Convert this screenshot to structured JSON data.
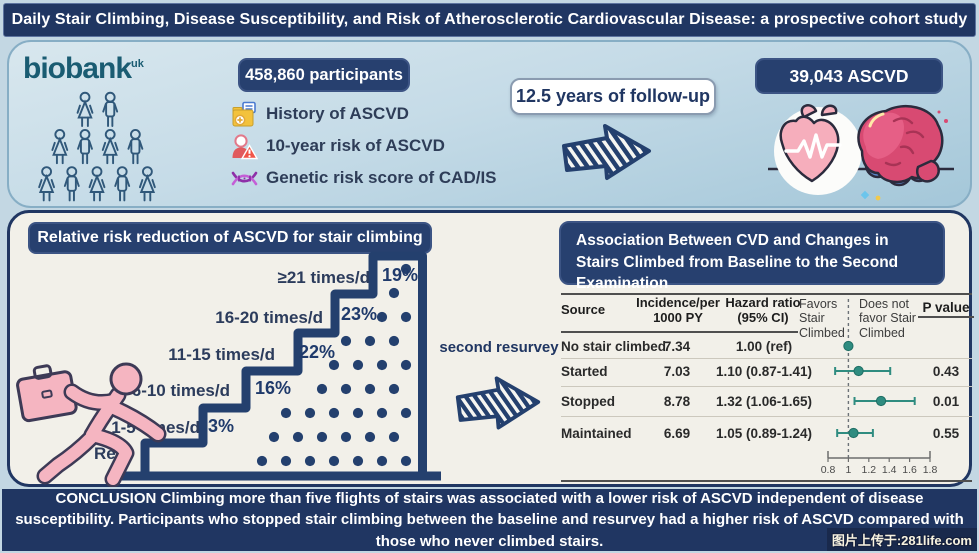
{
  "page": {
    "title": "Daily Stair Climbing, Disease Susceptibility, and Risk of Atherosclerotic Cardiovascular Disease: a prospective cohort study"
  },
  "colors": {
    "navy": "#203662",
    "badge_navy": "#27406f",
    "panel_cream": "#f2f0e9",
    "panel_blue_top": "#d8e7ee",
    "panel_blue_bottom": "#a4c7d9",
    "biobank_teal": "#1a5c72",
    "forest_teal": "#2f8c80",
    "person_pink": "#f5b5c1"
  },
  "top_panel": {
    "biobank_logo": "biobank",
    "biobank_sup": "uk",
    "participants_badge": "458,860 participants",
    "risk_items": [
      {
        "icon": "medical-record-icon",
        "label": "History of ASCVD"
      },
      {
        "icon": "patient-risk-icon",
        "label": "10-year risk of ASCVD"
      },
      {
        "icon": "dna-icon",
        "label": "Genetic risk score of CAD/IS"
      }
    ],
    "followup_badge": "12.5 years of follow-up",
    "ascvd_badge": "39,043 ASCVD"
  },
  "left_chart": {
    "title": "Relative risk reduction of ASCVD for stair climbing",
    "baseline_label": "Ref",
    "steps": [
      {
        "label": "1-5 times/d",
        "value": "3%"
      },
      {
        "label": "6-10 times/d",
        "value": "16%"
      },
      {
        "label": "11-15 times/d",
        "value": "22%"
      },
      {
        "label": "16-20 times/d",
        "value": "23%"
      },
      {
        "label": "≥21 times/d",
        "value": "19%"
      }
    ]
  },
  "middle": {
    "resurvey_label": "second resurvey"
  },
  "right_table": {
    "title": "Association Between CVD and Changes in Stairs Climbed from Baseline to the Second Examination",
    "header_source": "Source",
    "header_incidence": "Incidence/per 1000 PY",
    "header_hazard": "Hazard ratio (95% CI)",
    "header_favors": "Favors Stair Climbed",
    "header_not_favor": "Does not favor Stair Climbed",
    "header_p": "P value",
    "axis_ticks": [
      "0.8",
      "1",
      "1.2",
      "1.4",
      "1.6",
      "1.8"
    ],
    "rows": [
      {
        "source": "No stair climbed",
        "incidence": "7.34",
        "hazard": "1.00 (ref)",
        "hr": 1.0,
        "lo": null,
        "hi": null,
        "p": ""
      },
      {
        "source": "Started",
        "incidence": "7.03",
        "hazard": "1.10 (0.87-1.41)",
        "hr": 1.1,
        "lo": 0.87,
        "hi": 1.41,
        "p": "0.43"
      },
      {
        "source": "Stopped",
        "incidence": "8.78",
        "hazard": "1.32 (1.06-1.65)",
        "hr": 1.32,
        "lo": 1.06,
        "hi": 1.65,
        "p": "0.01"
      },
      {
        "source": "Maintained",
        "incidence": "6.69",
        "hazard": "1.05 (0.89-1.24)",
        "hr": 1.05,
        "lo": 0.89,
        "hi": 1.24,
        "p": "0.55"
      }
    ]
  },
  "chart_data": [
    {
      "type": "bar",
      "subtype": "staircase-pictogram",
      "title": "Relative risk reduction of ASCVD for stair climbing",
      "categories": [
        "Ref",
        "1-5 times/d",
        "6-10 times/d",
        "11-15 times/d",
        "16-20 times/d",
        "≥21 times/d"
      ],
      "values": [
        0,
        3,
        16,
        22,
        23,
        19
      ],
      "ylabel": "Relative risk reduction (%)"
    },
    {
      "type": "scatter",
      "subtype": "forest-plot",
      "title": "Association Between CVD and Changes in Stairs Climbed from Baseline to the Second Examination",
      "categories": [
        "No stair climbed",
        "Started",
        "Stopped",
        "Maintained"
      ],
      "incidence_per_1000_py": [
        7.34,
        7.03,
        8.78,
        6.69
      ],
      "hazard_ratio": [
        1.0,
        1.1,
        1.32,
        1.05
      ],
      "ci_low": [
        null,
        0.87,
        1.06,
        0.89
      ],
      "ci_high": [
        null,
        1.41,
        1.65,
        1.24
      ],
      "p_values": [
        null,
        0.43,
        0.01,
        0.55
      ],
      "xlim": [
        0.8,
        1.8
      ],
      "x_ticks": [
        0.8,
        1,
        1.2,
        1.4,
        1.6,
        1.8
      ],
      "reference_line": 1,
      "legend_left": "Favors Stair Climbed",
      "legend_right": "Does not favor Stair Climbed"
    }
  ],
  "conclusion": "CONCLUSION Climbing more than five flights of stairs was associated with a lower risk of ASCVD  independent of disease susceptibility. Participants who stopped stair climbing between the baseline and resurvey had a higher risk of ASCVD compared with those who never climbed stairs.",
  "watermark": "图片上传于:281life.com"
}
